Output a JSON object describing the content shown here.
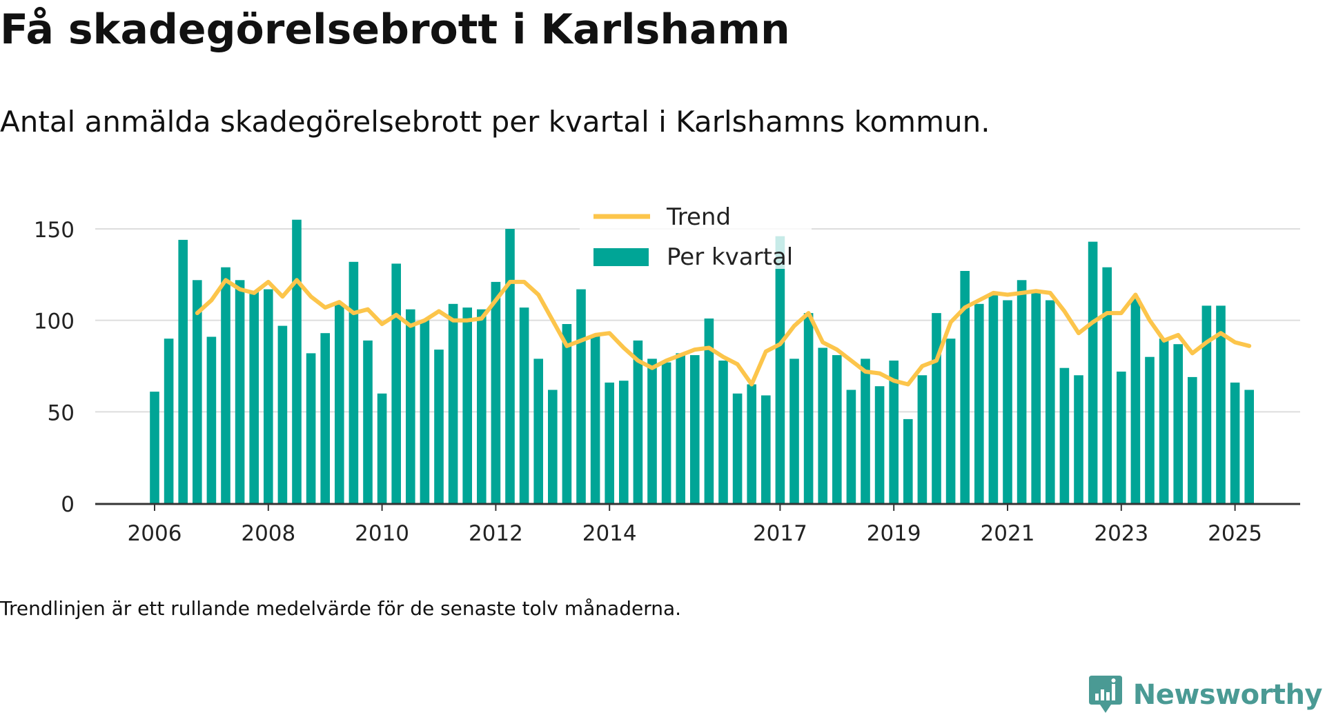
{
  "header": {
    "title": "Få skadegörelsebrott i Karlshamn",
    "subtitle": "Antal anmälda skadegörelsebrott per kvartal i Karlshamns kommun."
  },
  "footnote": "Trendlinjen är ett rullande medelvärde för de senaste tolv månaderna.",
  "brand": {
    "name": "Newsworthy",
    "icon": "newsworthy-logo-icon"
  },
  "colors": {
    "bars": "#00a596",
    "trend": "#fcc54b",
    "grid": "#dddddd",
    "axis": "#333333",
    "text": "#222222"
  },
  "chart_data": {
    "type": "bar",
    "title": "Få skadegörelsebrott i Karlshamn",
    "subtitle": "Antal anmälda skadegörelsebrott per kvartal i Karlshamns kommun.",
    "xlabel": "",
    "ylabel": "",
    "ylim": [
      0,
      160
    ],
    "yticks": [
      0,
      50,
      100,
      150
    ],
    "xtick_labels": [
      "2006",
      "2008",
      "2010",
      "2012",
      "2014",
      "2017",
      "2019",
      "2021",
      "2023",
      "2025"
    ],
    "xtick_index": [
      0,
      8,
      16,
      24,
      32,
      44,
      52,
      60,
      68,
      76
    ],
    "grid": true,
    "legend_position": "top-center",
    "legend": [
      "Trend",
      "Per kvartal"
    ],
    "series": [
      {
        "name": "Per kvartal",
        "type": "bar",
        "values": [
          61,
          90,
          144,
          122,
          91,
          129,
          122,
          116,
          117,
          97,
          155,
          82,
          93,
          109,
          132,
          89,
          60,
          131,
          106,
          100,
          84,
          109,
          107,
          106,
          121,
          150,
          107,
          79,
          62,
          98,
          117,
          92,
          66,
          67,
          89,
          79,
          77,
          82,
          81,
          101,
          78,
          60,
          65,
          59,
          146,
          79,
          104,
          85,
          81,
          62,
          79,
          64,
          78,
          46,
          70,
          104,
          90,
          127,
          109,
          114,
          111,
          122,
          116,
          111,
          74,
          70,
          143,
          129,
          72,
          112,
          80,
          90,
          87,
          69,
          108,
          108,
          66,
          62
        ]
      },
      {
        "name": "Trend",
        "type": "line",
        "start_index": 3,
        "values": [
          104,
          111,
          122,
          117,
          115,
          121,
          113,
          122,
          113,
          107,
          110,
          104,
          106,
          98,
          103,
          97,
          100,
          105,
          100,
          100,
          101,
          111,
          121,
          121,
          114,
          100,
          86,
          89,
          92,
          93,
          85,
          78,
          74,
          78,
          81,
          84,
          85,
          80,
          76,
          65,
          83,
          87,
          97,
          104,
          88,
          84,
          78,
          72,
          71,
          67,
          65,
          75,
          78,
          99,
          107,
          111,
          115,
          114,
          115,
          116,
          115,
          105,
          93,
          99,
          104,
          104,
          114,
          100,
          89,
          92,
          82,
          88,
          93,
          88,
          86
        ]
      }
    ]
  }
}
